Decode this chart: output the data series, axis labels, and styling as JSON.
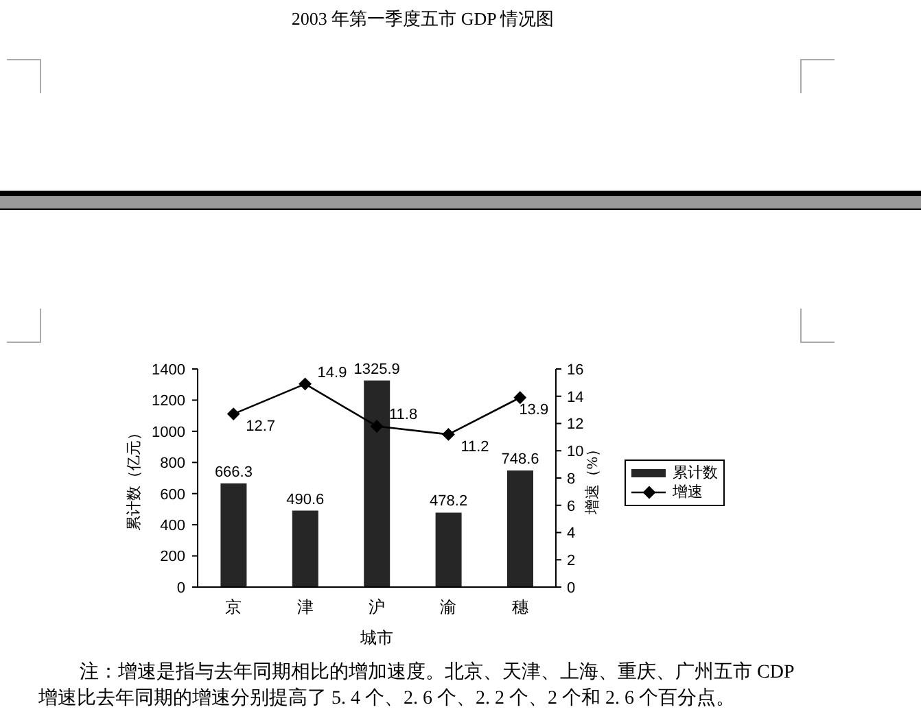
{
  "chart_data": {
    "type": "bar",
    "title": "2003 年第一季度五市 GDP 情况图",
    "xlabel": "城市",
    "ylabel": "累计数（亿元）",
    "y2label": "增速（%）",
    "categories": [
      "京",
      "津",
      "沪",
      "渝",
      "穗"
    ],
    "series": [
      {
        "name": "累计数",
        "color": "#262626",
        "values": [
          666.3,
          490.6,
          1325.9,
          478.2,
          748.6
        ]
      },
      {
        "name": "增速",
        "type": "line",
        "axis": "y2",
        "color": "#000000",
        "values": [
          12.7,
          14.9,
          11.8,
          11.2,
          13.9
        ]
      }
    ],
    "ylim": [
      0,
      1400
    ],
    "yticks": [
      0,
      200,
      400,
      600,
      800,
      1000,
      1200,
      1400
    ],
    "y2lim": [
      0,
      16
    ],
    "y2ticks": [
      0,
      2,
      4,
      6,
      8,
      10,
      12,
      14,
      16
    ],
    "data_labels": true,
    "legend": "right",
    "marker": "diamond",
    "line_style": "solid",
    "annotations": [
      "注：增速是指与去年同期相比的增加速度。北京、天津、上海、重庆、广州五市 CDP 增速比去年同期的增速分别提高了 5. 4 个、2. 6 个、2. 2 个、2 个和 2. 6 个百分点。"
    ]
  }
}
